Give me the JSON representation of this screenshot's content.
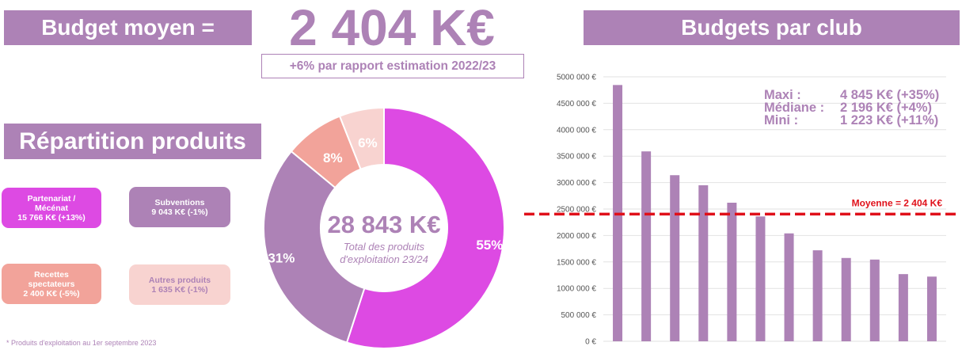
{
  "header": {
    "budget_label": "Budget moyen =",
    "budget_value": "2 404 K€",
    "budget_delta": "+6% par rapport estimation 2022/23"
  },
  "left": {
    "repartition_title": "Répartition produits",
    "cards": [
      {
        "lines": [
          "Partenariat /",
          "Mécénat",
          "15 766 K€ (+13%)"
        ],
        "color": "#dd4ae3"
      },
      {
        "lines": [
          "Subventions",
          "9 043 K€ (-1%)"
        ],
        "color": "#ad82b6"
      },
      {
        "lines": [
          "Recettes",
          "spectateurs",
          "2 400 K€ (-5%)"
        ],
        "color": "#f2a39a"
      },
      {
        "lines": [
          "Autres produits",
          "1 635 K€ (-1%)"
        ],
        "color": "#f8d3d0"
      }
    ],
    "footnote": "* Produits d'exploitation au 1er septembre 2023"
  },
  "donut": {
    "center_value": "28 843 K€",
    "center_caption_1": "Total des produits",
    "center_caption_2": "d'exploitation 23/24",
    "slices": [
      {
        "label": "Partenariat / Mécénat",
        "pct": 55,
        "pct_label": "55%",
        "color": "#dd4ae3"
      },
      {
        "label": "Subventions",
        "pct": 31,
        "pct_label": "31%",
        "color": "#ad82b6"
      },
      {
        "label": "Recettes spectateurs",
        "pct": 8,
        "pct_label": "8%",
        "color": "#f2a39a"
      },
      {
        "label": "Autres produits",
        "pct": 6,
        "pct_label": "6%",
        "color": "#f8d3d0"
      }
    ]
  },
  "right": {
    "title": "Budgets par club",
    "stats": [
      {
        "label": "Maxi :",
        "value": "4 845 K€ (+35%)"
      },
      {
        "label": "Médiane :",
        "value": "2 196 K€ (+4%)"
      },
      {
        "label": "Mini :",
        "value": "1 223 K€ (+11%)"
      }
    ],
    "mean_label": "Moyenne = 2 404 K€"
  },
  "chart_data": {
    "type": "bar",
    "categories": [
      "",
      "",
      "",
      "",
      "",
      "",
      "",
      "",
      "",
      "",
      "",
      ""
    ],
    "values": [
      4845000,
      3590000,
      3140000,
      2950000,
      2620000,
      2360000,
      2040000,
      1720000,
      1575000,
      1545000,
      1270000,
      1223000
    ],
    "bar_color": "#ad82b6",
    "mean": 2404000,
    "mean_color": "#e0101a",
    "ylim": [
      0,
      5000000
    ],
    "yticks": [
      0,
      500000,
      1000000,
      1500000,
      2000000,
      2500000,
      3000000,
      3500000,
      4000000,
      4500000,
      5000000
    ],
    "ytick_labels": [
      "0 €",
      "500 000 €",
      "1000 000 €",
      "1500 000 €",
      "2000 000 €",
      "2500 000 €",
      "3000 000 €",
      "3500 000 €",
      "4000 000 €",
      "4500 000 €",
      "5000 000 €"
    ],
    "grid": true
  }
}
